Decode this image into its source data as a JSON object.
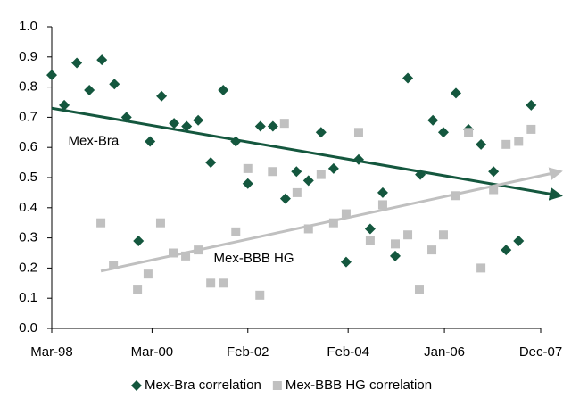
{
  "chart_data": {
    "type": "scatter",
    "xlim": [
      1998.17,
      2007.92
    ],
    "xticks": [
      {
        "value": 1998.17,
        "label": "Mar-98"
      },
      {
        "value": 2000.17,
        "label": "Mar-00"
      },
      {
        "value": 2002.08,
        "label": "Feb-02"
      },
      {
        "value": 2004.08,
        "label": "Feb-04"
      },
      {
        "value": 2006.0,
        "label": "Jan-06"
      },
      {
        "value": 2007.92,
        "label": "Dec-07"
      }
    ],
    "ylim": [
      0,
      1
    ],
    "yticks": [
      {
        "value": 0,
        "label": "0.0"
      },
      0.1,
      0.2,
      0.3,
      0.4,
      0.5,
      0.6,
      0.7,
      0.8,
      0.9,
      {
        "value": 1,
        "label": "1.0"
      }
    ],
    "grid": false,
    "legend": "bottom",
    "series": [
      {
        "name": "Mex-Bra correlation",
        "color": "#14573e",
        "marker": "diamond",
        "x": [
          1998.17,
          1998.42,
          1998.67,
          1998.92,
          1999.17,
          1999.42,
          1999.66,
          1999.9,
          2000.13,
          2000.36,
          2000.61,
          2000.86,
          2001.09,
          2001.34,
          2001.59,
          2001.84,
          2002.08,
          2002.33,
          2002.58,
          2002.83,
          2003.05,
          2003.29,
          2003.54,
          2003.79,
          2004.04,
          2004.29,
          2004.52,
          2004.77,
          2005.02,
          2005.27,
          2005.52,
          2005.77,
          2005.98,
          2006.23,
          2006.48,
          2006.73,
          2006.98,
          2007.23,
          2007.48,
          2007.73
        ],
        "values": [
          0.84,
          0.74,
          0.88,
          0.79,
          0.89,
          0.81,
          0.7,
          0.29,
          0.62,
          0.77,
          0.68,
          0.67,
          0.69,
          0.55,
          0.79,
          0.62,
          0.48,
          0.67,
          0.67,
          0.43,
          0.52,
          0.49,
          0.65,
          0.53,
          0.22,
          0.56,
          0.33,
          0.45,
          0.24,
          0.83,
          0.51,
          0.69,
          0.65,
          0.78,
          0.66,
          0.61,
          0.52,
          0.26,
          0.29,
          0.74
        ],
        "trend": {
          "x": [
            1998.17,
            2008.31
          ],
          "y": [
            0.73,
            0.44
          ]
        },
        "annotation": "Mex-Bra",
        "annotation_at": {
          "x": 1998.5,
          "y": 0.62
        }
      },
      {
        "name": "Mex-BBB HG correlation",
        "color": "#c0c0c0",
        "marker": "square",
        "x": [
          1999.15,
          1999.4,
          1999.88,
          2000.09,
          2000.34,
          2000.59,
          2000.84,
          2001.09,
          2001.34,
          2001.59,
          2001.84,
          2002.08,
          2002.32,
          2002.57,
          2002.81,
          2003.06,
          2003.29,
          2003.54,
          2003.79,
          2004.04,
          2004.29,
          2004.52,
          2004.77,
          2005.02,
          2005.27,
          2005.5,
          2005.75,
          2005.98,
          2006.23,
          2006.48,
          2006.73,
          2006.98,
          2007.23,
          2007.48,
          2007.73
        ],
        "values": [
          0.35,
          0.21,
          0.13,
          0.18,
          0.35,
          0.25,
          0.24,
          0.26,
          0.15,
          0.15,
          0.32,
          0.53,
          0.11,
          0.52,
          0.68,
          0.45,
          0.33,
          0.51,
          0.35,
          0.38,
          0.65,
          0.29,
          0.41,
          0.28,
          0.31,
          0.13,
          0.26,
          0.31,
          0.44,
          0.65,
          0.2,
          0.46,
          0.61,
          0.62,
          0.66
        ],
        "trend": {
          "x": [
            1999.15,
            2008.31
          ],
          "y": [
            0.19,
            0.52
          ]
        },
        "annotation": "Mex-BBB HG",
        "annotation_at": {
          "x": 2001.4,
          "y": 0.23
        }
      }
    ]
  }
}
